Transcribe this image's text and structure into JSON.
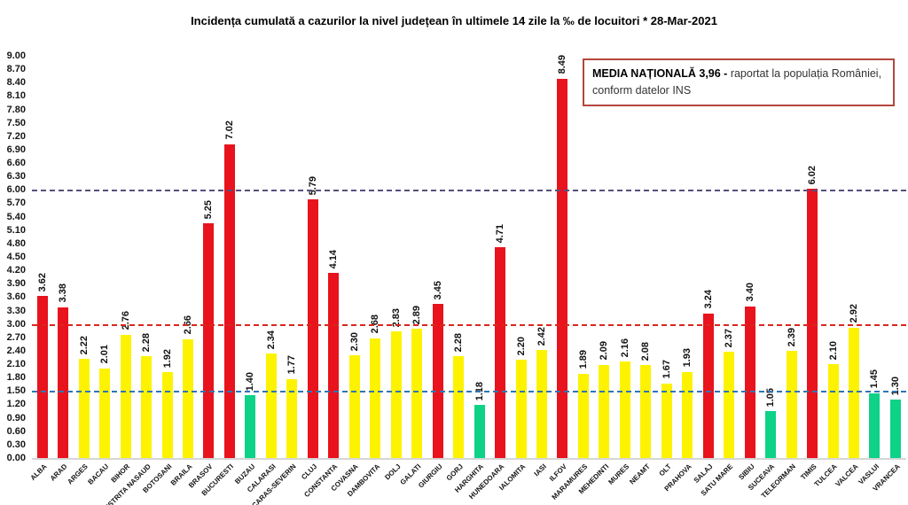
{
  "title": "Incidența cumulată a cazurilor la nivel județean în ultimele 14 zile la ‰ de locuitori * 28-Mar-2021",
  "annotation": {
    "bold": "MEDIA NAȚIONALĂ 3,96 -",
    "rest": "raportat la populația României,",
    "line2": "conform datelor INS",
    "border_color": "#b5463e"
  },
  "chart_data": {
    "type": "bar",
    "title": "Incidența cumulată a cazurilor la nivel județean în ultimele 14 zile la ‰ de locuitori * 28-Mar-2021",
    "categories": [
      "ALBA",
      "ARAD",
      "ARGES",
      "BACAU",
      "BIHOR",
      "BISTRITA NASAUD",
      "BOTOSANI",
      "BRAILA",
      "BRASOV",
      "BUCURESTI",
      "BUZAU",
      "CALARASI",
      "CARAS-SEVERIN",
      "CLUJ",
      "CONSTANTA",
      "COVASNA",
      "DAMBOVITA",
      "DOLJ",
      "GALATI",
      "GIURGIU",
      "GORJ",
      "HARGHITA",
      "HUNEDOARA",
      "IALOMITA",
      "IASI",
      "ILFOV",
      "MARAMURES",
      "MEHEDINTI",
      "MURES",
      "NEAMT",
      "OLT",
      "PRAHOVA",
      "SALAJ",
      "SATU MARE",
      "SIBIU",
      "SUCEAVA",
      "TELEORMAN",
      "TIMIS",
      "TULCEA",
      "VALCEA",
      "VASLUI",
      "VRANCEA"
    ],
    "values": [
      3.62,
      3.38,
      2.22,
      2.01,
      2.76,
      2.28,
      1.92,
      2.66,
      5.25,
      7.02,
      1.4,
      2.34,
      1.77,
      5.79,
      4.14,
      2.3,
      2.68,
      2.83,
      2.89,
      3.45,
      2.28,
      1.18,
      4.71,
      2.2,
      2.42,
      8.49,
      1.89,
      2.09,
      2.16,
      2.08,
      1.67,
      1.93,
      3.24,
      2.37,
      3.4,
      1.05,
      2.39,
      6.02,
      2.1,
      2.92,
      1.45,
      1.3
    ],
    "xlabel": "",
    "ylabel": "",
    "ylim": [
      0,
      9
    ],
    "ytick_step": 0.3,
    "yticks": [
      "9.00",
      "8.70",
      "8.40",
      "8.10",
      "7.80",
      "7.50",
      "7.20",
      "6.90",
      "6.60",
      "6.30",
      "6.00",
      "5.70",
      "5.40",
      "5.10",
      "4.80",
      "4.50",
      "4.20",
      "3.90",
      "3.60",
      "3.30",
      "3.00",
      "2.70",
      "2.40",
      "2.10",
      "1.80",
      "1.50",
      "1.20",
      "0.90",
      "0.60",
      "0.30",
      "0.00"
    ],
    "grid": false,
    "legend_position": "none",
    "bar_color_rule": {
      "green_below": 1.5,
      "yellow_upto": 3.0
    },
    "colors": {
      "red": "#e8131d",
      "yellow": "#fdf300",
      "green": "#0dd287"
    },
    "thresholds": [
      {
        "value": 1.5,
        "color": "#2e75b6",
        "style": "dashed"
      },
      {
        "value": 3.0,
        "color": "#d9261c",
        "style": "dashed"
      },
      {
        "value": 6.0,
        "color": "#584e7e",
        "style": "dashed"
      }
    ]
  }
}
